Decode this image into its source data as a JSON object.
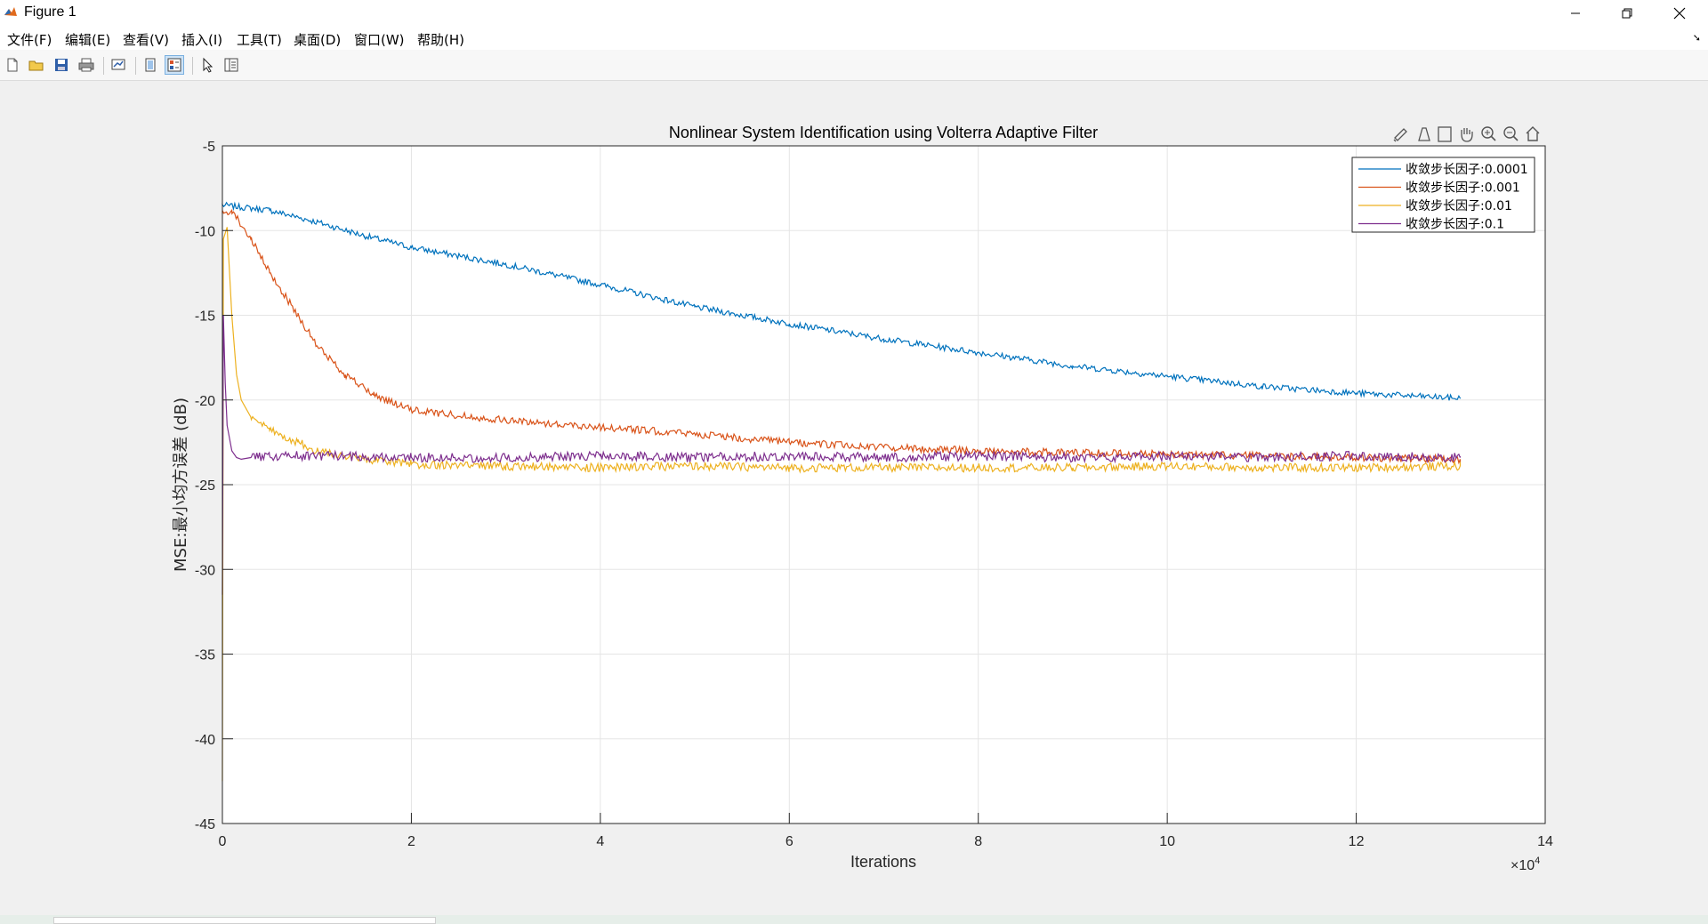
{
  "window": {
    "title": "Figure 1"
  },
  "menu": [
    "文件(F)",
    "编辑(E)",
    "查看(V)",
    "插入(I)",
    "工具(T)",
    "桌面(D)",
    "窗口(W)",
    "帮助(H)"
  ],
  "toolbar_icons": [
    "new-figure-icon",
    "open-file-icon",
    "save-icon",
    "print-icon",
    "link-plot-icon",
    "hide-plot-tools-icon",
    "show-plot-tools-icon",
    "edit-plot-arrow-icon",
    "property-inspector-icon"
  ],
  "axes_toolbar_icons": [
    "brush-icon",
    "data-tips-icon",
    "data-cursor-icon",
    "pan-hand-icon",
    "zoom-in-icon",
    "zoom-out-icon",
    "home-icon"
  ],
  "colors": {
    "series": [
      "#0072BD",
      "#D95319",
      "#EDB120",
      "#7E2F8E"
    ],
    "grid": "#e5e5e5",
    "axis": "#262626"
  },
  "chart_data": {
    "type": "line",
    "title": "Nonlinear System Identification using Volterra Adaptive Filter",
    "xlabel": "Iterations",
    "ylabel": "MSE:最小均方误差 (dB)",
    "x_exponent_label": "×10",
    "x_exponent_power": "4",
    "xlim": [
      0,
      14
    ],
    "ylim": [
      -45,
      -5
    ],
    "xticks": [
      "0",
      "2",
      "4",
      "6",
      "8",
      "10",
      "12",
      "14"
    ],
    "yticks": [
      "-5",
      "-10",
      "-15",
      "-20",
      "-25",
      "-30",
      "-35",
      "-40",
      "-45"
    ],
    "grid": true,
    "legend_location": "top-right",
    "series": [
      {
        "name": "收敛步长因子:0.0001",
        "x": [
          0,
          0.5,
          1,
          1.5,
          2,
          3,
          4,
          5,
          6,
          7,
          8,
          9,
          10,
          11,
          12,
          13.1
        ],
        "y": [
          -8.5,
          -8.8,
          -9.5,
          -10.3,
          -11.0,
          -12.0,
          -13.2,
          -14.5,
          -15.5,
          -16.4,
          -17.2,
          -18.0,
          -18.6,
          -19.2,
          -19.6,
          -19.9
        ]
      },
      {
        "name": "收敛步长因子:0.001",
        "x": [
          0,
          0.1,
          0.3,
          0.5,
          0.8,
          1,
          1.3,
          1.6,
          2,
          3,
          4,
          5,
          6,
          7,
          8,
          9,
          10,
          11,
          12,
          13.1
        ],
        "y": [
          -9.0,
          -8.8,
          -10.5,
          -12.5,
          -15.0,
          -16.8,
          -18.5,
          -19.7,
          -20.6,
          -21.2,
          -21.6,
          -22.0,
          -22.5,
          -22.8,
          -23.0,
          -23.1,
          -23.2,
          -23.3,
          -23.4,
          -23.5
        ]
      },
      {
        "name": "收敛步长因子:0.01",
        "x": [
          0,
          0.01,
          0.05,
          0.1,
          0.15,
          0.2,
          0.3,
          0.5,
          0.8,
          1,
          1.5,
          2,
          3,
          4,
          5,
          6,
          7,
          8,
          9,
          10,
          11,
          12,
          13.1
        ],
        "y": [
          -42.5,
          -10.5,
          -9.8,
          -15.0,
          -18.5,
          -20.0,
          -21.0,
          -21.8,
          -22.5,
          -23.0,
          -23.5,
          -23.8,
          -23.9,
          -24.0,
          -23.9,
          -24.0,
          -24.0,
          -24.0,
          -24.0,
          -23.9,
          -24.0,
          -24.0,
          -23.9
        ]
      },
      {
        "name": "收敛步长因子:0.1",
        "x": [
          0,
          0.01,
          0.03,
          0.05,
          0.1,
          0.15,
          0.2,
          0.3,
          0.5,
          1,
          2,
          3,
          4,
          5,
          6,
          7,
          8,
          9,
          10,
          11,
          12,
          13.1
        ],
        "y": [
          -31.5,
          -15.0,
          -19.0,
          -21.5,
          -23.0,
          -23.4,
          -23.5,
          -23.4,
          -23.3,
          -23.3,
          -23.4,
          -23.4,
          -23.3,
          -23.4,
          -23.3,
          -23.4,
          -23.3,
          -23.4,
          -23.3,
          -23.4,
          -23.3,
          -23.4
        ]
      }
    ]
  }
}
